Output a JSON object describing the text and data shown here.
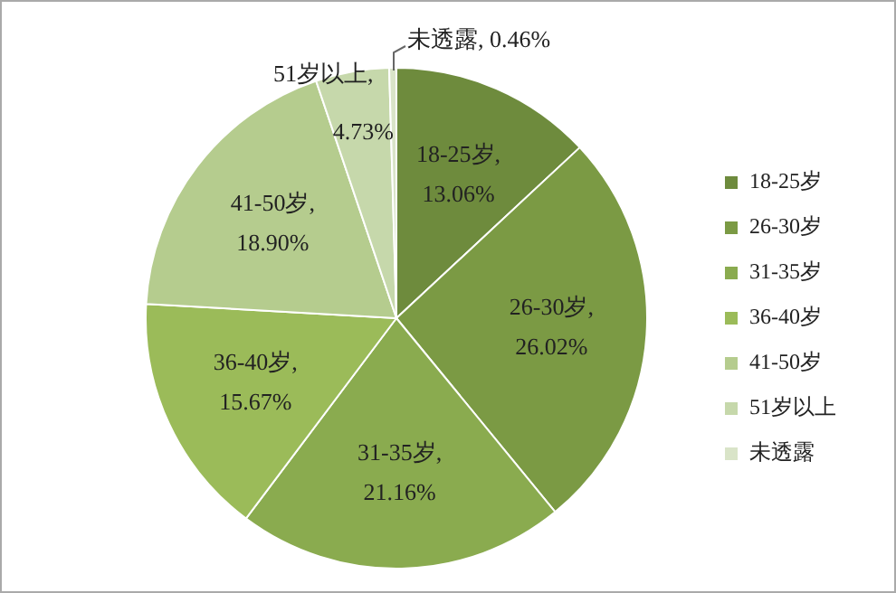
{
  "chart_data": {
    "type": "pie",
    "categories": [
      "18-25岁",
      "26-30岁",
      "31-35岁",
      "36-40岁",
      "41-50岁",
      "51岁以上",
      "未透露"
    ],
    "values": [
      13.06,
      26.02,
      21.16,
      15.67,
      18.9,
      4.73,
      0.46
    ],
    "colors": [
      "#6e8b3d",
      "#7b9a44",
      "#8aab4f",
      "#9bbb59",
      "#b5cc8e",
      "#c6d8ab",
      "#d9e4c8"
    ],
    "value_labels": [
      "18-25岁, 13.06%",
      "26-30岁, 26.02%",
      "31-35岁, 21.16%",
      "36-40岁, 15.67%",
      "41-50岁, 18.90%",
      "51岁以上, 4.73%",
      "未透露, 0.46%"
    ],
    "legend": "right"
  }
}
